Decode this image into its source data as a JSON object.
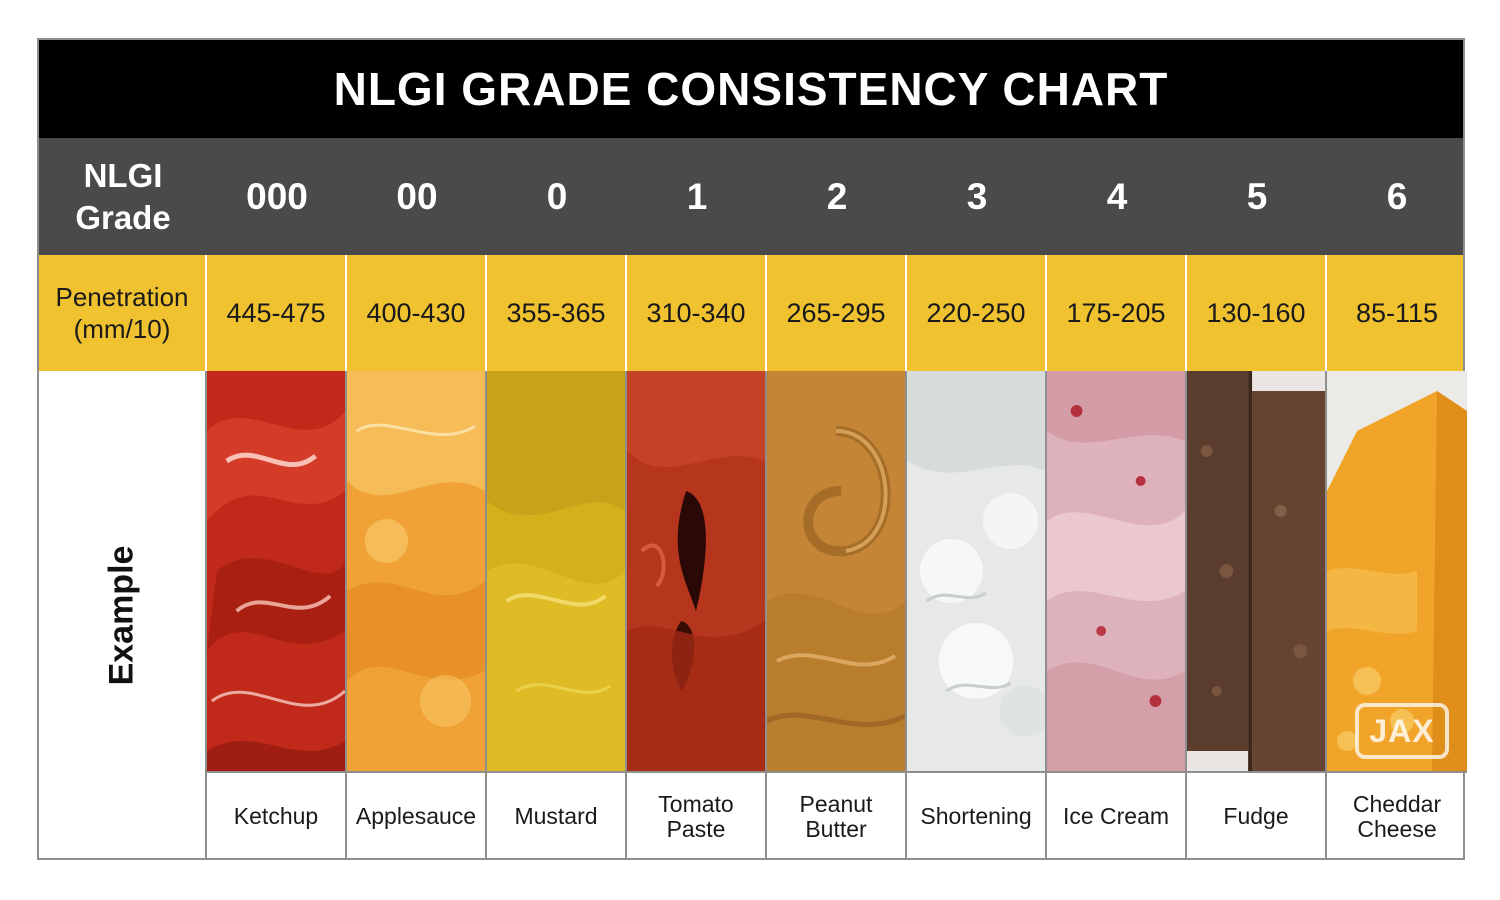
{
  "title": "NLGI GRADE CONSISTENCY CHART",
  "row_headers": {
    "grade_line1": "NLGI",
    "grade_line2": "Grade",
    "penetration_line1": "Penetration",
    "penetration_line2": "(mm/10)",
    "example": "Example"
  },
  "columns": [
    {
      "grade": "000",
      "penetration": "445-475",
      "example_line1": "Ketchup",
      "example_line2": "",
      "color": "#c5301c"
    },
    {
      "grade": "00",
      "penetration": "400-430",
      "example_line1": "Applesauce",
      "example_line2": "",
      "color": "#f2a33a"
    },
    {
      "grade": "0",
      "penetration": "355-365",
      "example_line1": "Mustard",
      "example_line2": "",
      "color": "#dcb61e"
    },
    {
      "grade": "1",
      "penetration": "310-340",
      "example_line1": "Tomato",
      "example_line2": "Paste",
      "color": "#b8381f"
    },
    {
      "grade": "2",
      "penetration": "265-295",
      "example_line1": "Peanut",
      "example_line2": "Butter",
      "color": "#c88b3c"
    },
    {
      "grade": "3",
      "penetration": "220-250",
      "example_line1": "Shortening",
      "example_line2": "",
      "color": "#e8ebea"
    },
    {
      "grade": "4",
      "penetration": "175-205",
      "example_line1": "Ice Cream",
      "example_line2": "",
      "color": "#e3b9c1"
    },
    {
      "grade": "5",
      "penetration": "130-160",
      "example_line1": "Fudge",
      "example_line2": "",
      "color": "#5c3f2e"
    },
    {
      "grade": "6",
      "penetration": "85-115",
      "example_line1": "Cheddar",
      "example_line2": "Cheese",
      "color": "#f1a62a"
    }
  ],
  "watermark": "JAX",
  "colors": {
    "title_bg": "#000000",
    "grade_row_bg": "#4a4a4a",
    "penetration_row_bg": "#f0c230",
    "border": "#8e8e8e"
  }
}
